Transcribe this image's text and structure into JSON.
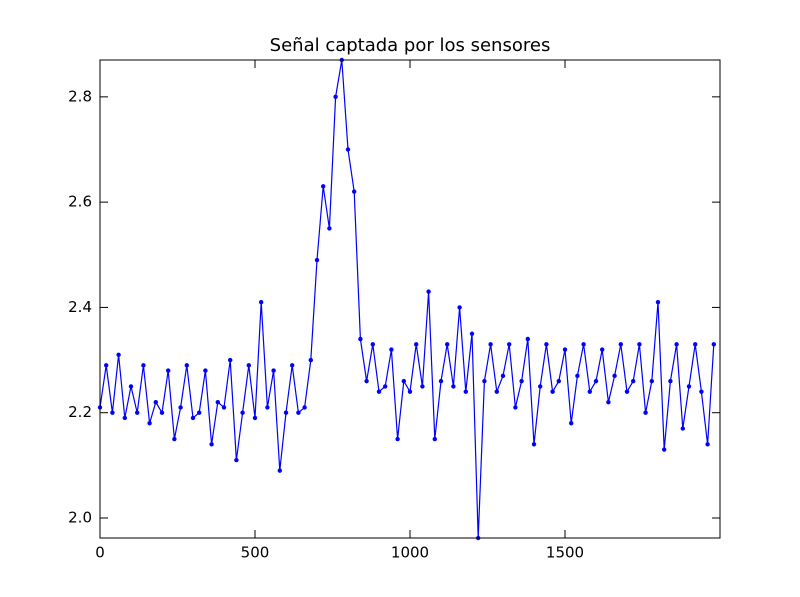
{
  "chart_data": {
    "type": "line",
    "title": "Señal captada por los sensores",
    "x": [
      0,
      20,
      40,
      60,
      80,
      100,
      120,
      140,
      160,
      180,
      200,
      220,
      240,
      260,
      280,
      300,
      320,
      340,
      360,
      380,
      400,
      420,
      440,
      460,
      480,
      500,
      520,
      540,
      560,
      580,
      600,
      620,
      640,
      660,
      680,
      700,
      720,
      740,
      760,
      780,
      800,
      820,
      840,
      860,
      880,
      900,
      920,
      940,
      960,
      980,
      1000,
      1020,
      1040,
      1060,
      1080,
      1100,
      1120,
      1140,
      1160,
      1180,
      1200,
      1220,
      1240,
      1260,
      1280,
      1300,
      1320,
      1340,
      1360,
      1380,
      1400,
      1420,
      1440,
      1460,
      1480,
      1500,
      1520,
      1540,
      1560,
      1580,
      1600,
      1620,
      1640,
      1660,
      1680,
      1700,
      1720,
      1740,
      1760,
      1780,
      1800,
      1820,
      1840,
      1860,
      1880,
      1900,
      1920,
      1940,
      1960,
      1980
    ],
    "series": [
      {
        "color": "#0000ff",
        "values": [
          2.21,
          2.29,
          2.2,
          2.31,
          2.19,
          2.25,
          2.2,
          2.29,
          2.18,
          2.22,
          2.2,
          2.28,
          2.15,
          2.21,
          2.29,
          2.19,
          2.2,
          2.28,
          2.14,
          2.22,
          2.21,
          2.3,
          2.11,
          2.2,
          2.29,
          2.19,
          2.41,
          2.21,
          2.28,
          2.09,
          2.2,
          2.29,
          2.2,
          2.21,
          2.3,
          2.49,
          2.63,
          2.55,
          2.8,
          2.87,
          2.7,
          2.62,
          2.34,
          2.26,
          2.33,
          2.24,
          2.25,
          2.32,
          2.15,
          2.26,
          2.24,
          2.33,
          2.25,
          2.43,
          2.15,
          2.26,
          2.33,
          2.25,
          2.4,
          2.24,
          2.35,
          1.962,
          2.26,
          2.33,
          2.24,
          2.27,
          2.33,
          2.21,
          2.26,
          2.34,
          2.14,
          2.25,
          2.33,
          2.24,
          2.26,
          2.32,
          2.18,
          2.27,
          2.33,
          2.24,
          2.26,
          2.32,
          2.22,
          2.27,
          2.33,
          2.24,
          2.26,
          2.33,
          2.2,
          2.26,
          2.41,
          2.13,
          2.26,
          2.33,
          2.17,
          2.25,
          2.33,
          2.24,
          2.14,
          2.33
        ]
      }
    ],
    "xlim": [
      0,
      2000
    ],
    "xticks": [
      0,
      500,
      1000,
      1500
    ],
    "ylim": [
      1.962,
      2.87
    ],
    "yticks": [
      {
        "value": 2,
        "label": "2.0"
      },
      2.2,
      2.4,
      2.6,
      2.8
    ]
  }
}
